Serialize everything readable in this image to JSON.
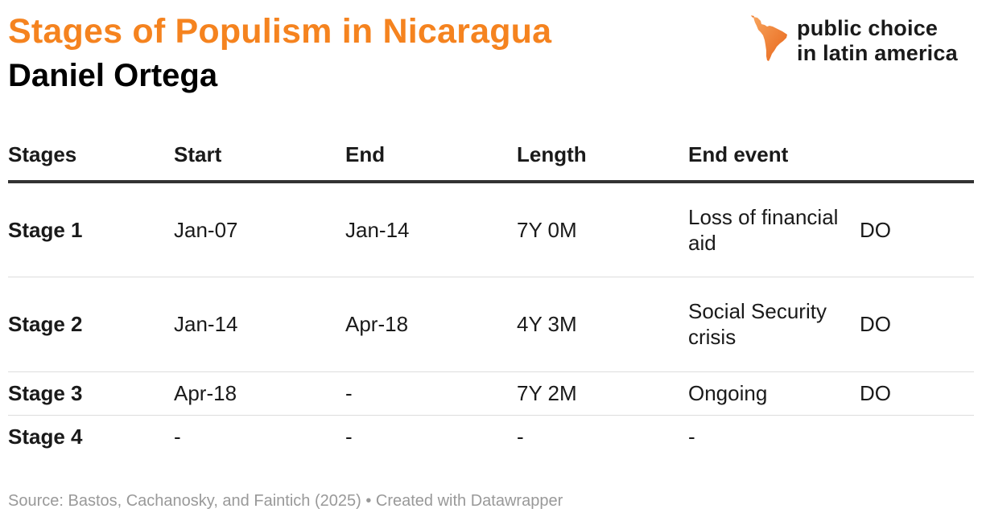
{
  "title": "Stages of Populism in Nicaragua",
  "subtitle": "Daniel Ortega",
  "logo": {
    "line1": "public choice",
    "line2": "in latin america",
    "icon": "latin-america-map-icon"
  },
  "colors": {
    "accent": "#f5831f",
    "text": "#1a1a1a",
    "muted": "#999999"
  },
  "chart_data": {
    "type": "table",
    "columns": [
      "Stages",
      "Start",
      "End",
      "Length",
      "End event",
      ""
    ],
    "rows": [
      {
        "stage": "Stage 1",
        "start": "Jan-07",
        "end": "Jan-14",
        "length": "7Y 0M",
        "end_event": "Loss of financial aid",
        "tag": "DO"
      },
      {
        "stage": "Stage 2",
        "start": "Jan-14",
        "end": "Apr-18",
        "length": "4Y 3M",
        "end_event": "Social Security crisis",
        "tag": "DO"
      },
      {
        "stage": "Stage 3",
        "start": "Apr-18",
        "end": "-",
        "length": "7Y 2M",
        "end_event": "Ongoing",
        "tag": "DO"
      },
      {
        "stage": "Stage 4",
        "start": "-",
        "end": "-",
        "length": "-",
        "end_event": "-",
        "tag": ""
      }
    ]
  },
  "footer": {
    "source": "Source: Bastos, Cachanosky, and Faintich (2025)",
    "separator": "•",
    "credit": "Created with Datawrapper"
  }
}
